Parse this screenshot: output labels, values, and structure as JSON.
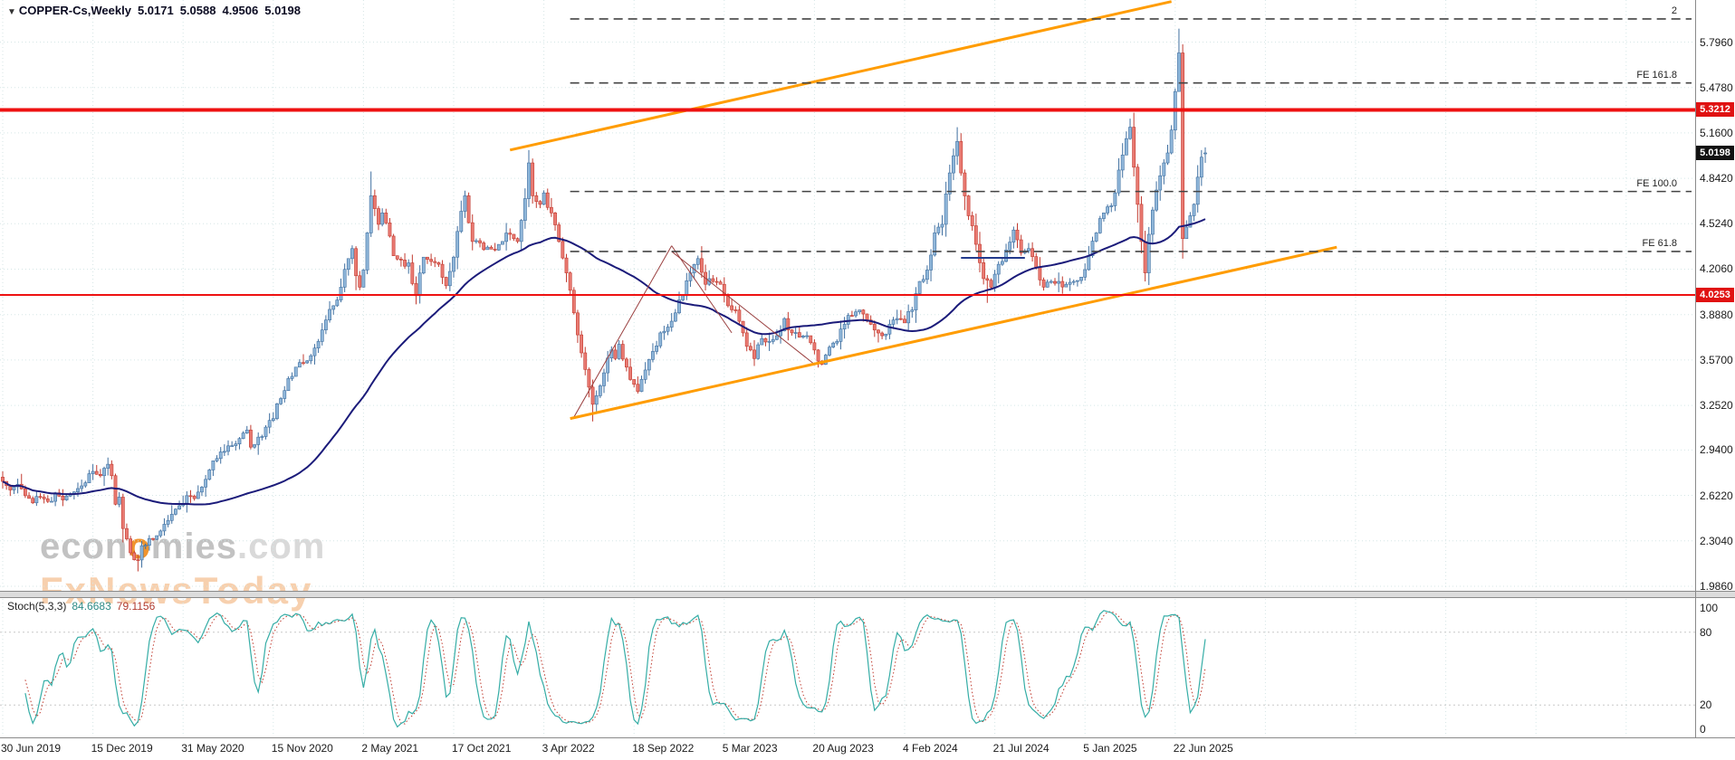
{
  "header": {
    "marker": "▼",
    "symbol_period": "COPPER-Cs,Weekly",
    "open": "5.0171",
    "high": "5.0588",
    "low": "4.9506",
    "close": "5.0198"
  },
  "watermark": {
    "line1_pre": "econ",
    "line1_o": "o",
    "line1_mid": "mies",
    "line1_com": ".com",
    "line2": "FxNewsToday"
  },
  "stoch_label": {
    "name": "Stoch(5,3,3)",
    "k_value": "84.6683",
    "d_value": "79.1156"
  },
  "colors": {
    "up_fill": "#8FB6D9",
    "up_edge": "#3F6FA0",
    "down_fill": "#E97A72",
    "down_edge": "#C23B30",
    "grid": "#D5E6E6",
    "stoch_grid": "#C8C8C8",
    "ma": "#1B1B7A",
    "trend": "#FF9C00",
    "level_red": "#EE1111",
    "fe_dash": "#444444",
    "stoch_k": "#35ADA6",
    "stoch_d": "#C03A2E",
    "badge_red": "#E01212",
    "badge_dark": "#111111",
    "annotation": "#9A4040",
    "hseg": "#223A8C",
    "separator": "#8A8A8A",
    "separator_fill": "#DCDCDC"
  },
  "chart_data": {
    "type": "candlestick",
    "symbol": "COPPER-Cs",
    "timeframe": "Weekly",
    "seed": 11,
    "y_axis": {
      "ticks": [
        "5.7960",
        "5.4780",
        "5.1600",
        "4.8420",
        "4.5240",
        "4.2060",
        "3.8880",
        "3.5700",
        "3.2520",
        "2.9400",
        "2.6220",
        "2.3040",
        "1.9860"
      ]
    },
    "x_axis": {
      "weeks_per_grid": 24,
      "labels": [
        {
          "text": "30 Jun 2019",
          "week": 0
        },
        {
          "text": "15 Dec 2019",
          "week": 24
        },
        {
          "text": "31 May 2020",
          "week": 48
        },
        {
          "text": "15 Nov 2020",
          "week": 72
        },
        {
          "text": "2 May 2021",
          "week": 96
        },
        {
          "text": "17 Oct 2021",
          "week": 120
        },
        {
          "text": "3 Apr 2022",
          "week": 144
        },
        {
          "text": "18 Sep 2022",
          "week": 168
        },
        {
          "text": "5 Mar 2023",
          "week": 192
        },
        {
          "text": "20 Aug 2023",
          "week": 216
        },
        {
          "text": "4 Feb 2024",
          "week": 240
        },
        {
          "text": "21 Jul 2024",
          "week": 264
        },
        {
          "text": "5 Jan 2025",
          "week": 288
        },
        {
          "text": "22 Jun 2025",
          "week": 312
        }
      ]
    },
    "stoch_axis": [
      {
        "label": "100",
        "value": 100
      },
      {
        "label": "80",
        "value": 80
      },
      {
        "label": "20",
        "value": 20
      },
      {
        "label": "0",
        "value": 0
      }
    ],
    "price_anchors": [
      [
        0,
        2.72
      ],
      [
        2,
        2.66
      ],
      [
        4,
        2.7
      ],
      [
        6,
        2.62
      ],
      [
        8,
        2.57
      ],
      [
        10,
        2.61
      ],
      [
        12,
        2.58
      ],
      [
        14,
        2.64
      ],
      [
        16,
        2.59
      ],
      [
        18,
        2.63
      ],
      [
        20,
        2.67
      ],
      [
        22,
        2.71
      ],
      [
        24,
        2.79
      ],
      [
        26,
        2.76
      ],
      [
        28,
        2.84
      ],
      [
        29,
        2.76
      ],
      [
        30,
        2.56
      ],
      [
        31,
        2.61
      ],
      [
        32,
        2.39
      ],
      [
        34,
        2.22
      ],
      [
        36,
        2.17
      ],
      [
        37,
        2.27
      ],
      [
        39,
        2.32
      ],
      [
        41,
        2.34
      ],
      [
        43,
        2.42
      ],
      [
        45,
        2.49
      ],
      [
        47,
        2.55
      ],
      [
        49,
        2.62
      ],
      [
        51,
        2.6
      ],
      [
        53,
        2.68
      ],
      [
        55,
        2.8
      ],
      [
        57,
        2.88
      ],
      [
        59,
        2.93
      ],
      [
        61,
        2.97
      ],
      [
        63,
        3.02
      ],
      [
        65,
        3.08
      ],
      [
        66,
        2.96
      ],
      [
        68,
        3.03
      ],
      [
        70,
        3.1
      ],
      [
        72,
        3.16
      ],
      [
        74,
        3.3
      ],
      [
        76,
        3.44
      ],
      [
        78,
        3.52
      ],
      [
        80,
        3.55
      ],
      [
        82,
        3.6
      ],
      [
        84,
        3.7
      ],
      [
        86,
        3.85
      ],
      [
        88,
        3.95
      ],
      [
        90,
        4.08
      ],
      [
        92,
        4.28
      ],
      [
        93,
        4.35
      ],
      [
        94,
        4.16
      ],
      [
        95,
        4.08
      ],
      [
        96,
        4.2
      ],
      [
        97,
        4.46
      ],
      [
        98,
        4.72
      ],
      [
        99,
        4.63
      ],
      [
        100,
        4.52
      ],
      [
        101,
        4.6
      ],
      [
        102,
        4.53
      ],
      [
        104,
        4.3
      ],
      [
        106,
        4.27
      ],
      [
        108,
        4.25
      ],
      [
        110,
        4.02
      ],
      [
        112,
        4.29
      ],
      [
        114,
        4.26
      ],
      [
        116,
        4.24
      ],
      [
        118,
        4.09
      ],
      [
        120,
        4.29
      ],
      [
        121,
        4.47
      ],
      [
        123,
        4.72
      ],
      [
        125,
        4.4
      ],
      [
        127,
        4.39
      ],
      [
        129,
        4.36
      ],
      [
        131,
        4.34
      ],
      [
        133,
        4.4
      ],
      [
        135,
        4.45
      ],
      [
        137,
        4.4
      ],
      [
        139,
        4.7
      ],
      [
        140,
        4.95
      ],
      [
        141,
        4.72
      ],
      [
        143,
        4.66
      ],
      [
        144,
        4.74
      ],
      [
        146,
        4.6
      ],
      [
        148,
        4.4
      ],
      [
        150,
        4.18
      ],
      [
        152,
        3.9
      ],
      [
        154,
        3.62
      ],
      [
        156,
        3.38
      ],
      [
        157,
        3.26
      ],
      [
        158,
        3.32
      ],
      [
        160,
        3.48
      ],
      [
        162,
        3.64
      ],
      [
        163,
        3.58
      ],
      [
        164,
        3.68
      ],
      [
        166,
        3.52
      ],
      [
        168,
        3.4
      ],
      [
        169,
        3.35
      ],
      [
        171,
        3.5
      ],
      [
        173,
        3.63
      ],
      [
        175,
        3.76
      ],
      [
        177,
        3.8
      ],
      [
        179,
        3.9
      ],
      [
        181,
        4.02
      ],
      [
        183,
        4.18
      ],
      [
        185,
        4.28
      ],
      [
        187,
        4.1
      ],
      [
        189,
        4.12
      ],
      [
        191,
        4.1
      ],
      [
        193,
        3.95
      ],
      [
        195,
        3.92
      ],
      [
        197,
        3.76
      ],
      [
        199,
        3.64
      ],
      [
        200,
        3.58
      ],
      [
        202,
        3.72
      ],
      [
        204,
        3.7
      ],
      [
        206,
        3.74
      ],
      [
        208,
        3.86
      ],
      [
        210,
        3.76
      ],
      [
        212,
        3.73
      ],
      [
        214,
        3.74
      ],
      [
        216,
        3.64
      ],
      [
        218,
        3.54
      ],
      [
        220,
        3.66
      ],
      [
        222,
        3.7
      ],
      [
        224,
        3.82
      ],
      [
        226,
        3.88
      ],
      [
        228,
        3.92
      ],
      [
        230,
        3.85
      ],
      [
        232,
        3.78
      ],
      [
        234,
        3.74
      ],
      [
        236,
        3.82
      ],
      [
        238,
        3.86
      ],
      [
        240,
        3.83
      ],
      [
        242,
        3.92
      ],
      [
        244,
        4.12
      ],
      [
        246,
        4.2
      ],
      [
        248,
        4.46
      ],
      [
        250,
        4.52
      ],
      [
        252,
        4.88
      ],
      [
        253,
        5.0
      ],
      [
        254,
        5.1
      ],
      [
        255,
        4.88
      ],
      [
        257,
        4.58
      ],
      [
        259,
        4.38
      ],
      [
        261,
        4.14
      ],
      [
        263,
        4.08
      ],
      [
        265,
        4.24
      ],
      [
        267,
        4.34
      ],
      [
        269,
        4.48
      ],
      [
        271,
        4.32
      ],
      [
        273,
        4.35
      ],
      [
        275,
        4.22
      ],
      [
        277,
        4.08
      ],
      [
        279,
        4.12
      ],
      [
        281,
        4.12
      ],
      [
        283,
        4.1
      ],
      [
        285,
        4.12
      ],
      [
        287,
        4.15
      ],
      [
        289,
        4.3
      ],
      [
        291,
        4.46
      ],
      [
        293,
        4.6
      ],
      [
        295,
        4.65
      ],
      [
        297,
        4.9
      ],
      [
        299,
        5.12
      ],
      [
        300,
        5.2
      ],
      [
        301,
        4.92
      ],
      [
        302,
        4.66
      ],
      [
        303,
        4.4
      ],
      [
        304,
        4.18
      ],
      [
        305,
        4.45
      ],
      [
        306,
        4.62
      ],
      [
        307,
        4.76
      ],
      [
        308,
        4.86
      ],
      [
        309,
        4.95
      ],
      [
        310,
        5.02
      ],
      [
        311,
        5.18
      ],
      [
        312,
        5.45
      ],
      [
        313,
        5.72
      ],
      [
        314,
        4.42
      ],
      [
        315,
        4.5
      ],
      [
        316,
        4.58
      ],
      [
        317,
        4.66
      ],
      [
        318,
        4.85
      ],
      [
        319,
        4.99
      ],
      [
        320,
        5.0198
      ]
    ],
    "key_points": [
      {
        "week": 36,
        "low": 2.09
      },
      {
        "week": 98,
        "high": 4.89
      },
      {
        "week": 110,
        "low": 3.96
      },
      {
        "week": 140,
        "high": 5.04
      },
      {
        "week": 157,
        "low": 3.14
      },
      {
        "week": 254,
        "high": 5.2
      },
      {
        "week": 262,
        "low": 3.97
      },
      {
        "week": 300,
        "high": 5.26
      },
      {
        "week": 304,
        "low": 4.12
      },
      {
        "week": 313,
        "high": 5.89
      },
      {
        "week": 314,
        "high": 5.78,
        "low": 4.28
      },
      {
        "week": 320,
        "open": 5.0171,
        "high": 5.0588,
        "low": 4.9506
      }
    ],
    "ma": {
      "type": "sma",
      "period": 50
    },
    "stoch": {
      "k_period": 5,
      "slowing": 3,
      "d_period": 3
    },
    "levels": [
      {
        "value": 5.3212,
        "label": "5.3212",
        "width": 4
      },
      {
        "value": 4.0253,
        "label": "4.0253",
        "width": 2
      }
    ],
    "current_price": {
      "value": 5.0198,
      "label": "5.0198"
    },
    "fe_levels": [
      {
        "label": "2",
        "value": 5.958
      },
      {
        "label": "FE 161.8",
        "value": 5.51
      },
      {
        "label": "FE 100.0",
        "value": 4.75
      },
      {
        "label": "FE 61.8",
        "value": 4.33
      }
    ],
    "fe_start_week": 151,
    "trend_lines": [
      {
        "w1": 135,
        "p1": 5.04,
        "w2": 311,
        "p2": 6.08
      },
      {
        "w1": 151,
        "p1": 3.16,
        "w2": 355,
        "p2": 4.36
      }
    ],
    "annotation_lines": [
      [
        [
          152,
          3.17
        ],
        [
          178,
          4.37
        ]
      ],
      [
        [
          178,
          4.37
        ],
        [
          194,
          3.76
        ]
      ],
      [
        [
          178,
          4.33
        ],
        [
          216,
          3.54
        ]
      ]
    ],
    "hseg": {
      "w1": 255,
      "w2": 272,
      "price": 4.285
    }
  }
}
